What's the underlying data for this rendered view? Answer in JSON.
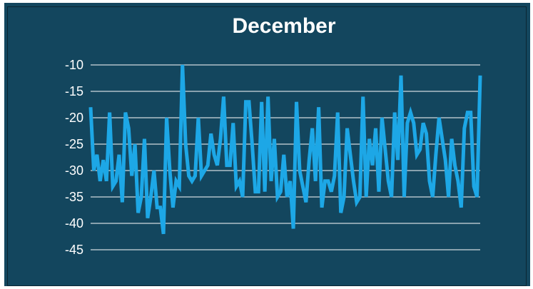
{
  "chart_data": {
    "type": "line",
    "title": "December",
    "xlabel": "",
    "ylabel": "",
    "ylim": [
      -45,
      -10
    ],
    "yticks": [
      -10,
      -15,
      -20,
      -25,
      -30,
      -35,
      -40,
      -45
    ],
    "grid": true,
    "legend": "none",
    "colors": {
      "background": "#13465e",
      "line": "#1da7e6",
      "grid": "#ffffff",
      "text": "#ffffff"
    },
    "series": [
      {
        "values": [
          -18,
          -30,
          -27,
          -32,
          -28,
          -32,
          -19,
          -33,
          -32,
          -27,
          -36,
          -19,
          -22,
          -31,
          -25,
          -38,
          -35,
          -24,
          -39,
          -35,
          -30,
          -37,
          -37,
          -42,
          -20,
          -30,
          -37,
          -32,
          -33,
          -10,
          -25,
          -31,
          -32,
          -31,
          -20,
          -31,
          -30,
          -29,
          -23,
          -27,
          -29,
          -24,
          -16,
          -29,
          -29,
          -21,
          -33,
          -32,
          -35,
          -17,
          -17,
          -25,
          -34,
          -34,
          -17,
          -34,
          -16,
          -32,
          -24,
          -35,
          -34,
          -27,
          -35,
          -32,
          -41,
          -17,
          -30,
          -33,
          -36,
          -28,
          -22,
          -32,
          -18,
          -37,
          -32,
          -32,
          -34,
          -31,
          -19,
          -38,
          -35,
          -22,
          -27,
          -32,
          -36,
          -35,
          -16,
          -35,
          -24,
          -29,
          -22,
          -34,
          -20,
          -26,
          -32,
          -35,
          -19,
          -28,
          -12,
          -35,
          -21,
          -19,
          -21,
          -27,
          -26,
          -21,
          -23,
          -32,
          -35,
          -27,
          -20,
          -24,
          -28,
          -35,
          -24,
          -29,
          -32,
          -37,
          -22,
          -19,
          -19,
          -33,
          -35,
          -12
        ]
      }
    ]
  }
}
